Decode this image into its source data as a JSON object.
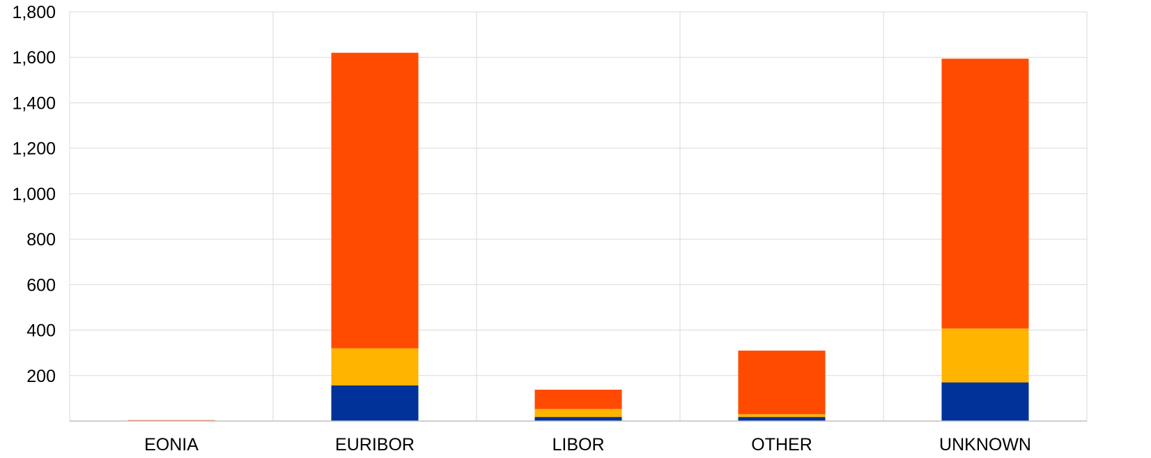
{
  "chart_data": {
    "type": "bar",
    "stacked": true,
    "categories": [
      "EONIA",
      "EURIBOR",
      "LIBOR",
      "OTHER",
      "UNKNOWN"
    ],
    "series": [
      {
        "color": "#003299",
        "values": [
          0,
          157,
          18,
          18,
          170
        ]
      },
      {
        "color": "#FFB400",
        "values": [
          0,
          163,
          35,
          12,
          237
        ]
      },
      {
        "color": "#FF4B00",
        "values": [
          4,
          1300,
          85,
          280,
          1187
        ]
      }
    ],
    "y_ticks": [
      "200",
      "400",
      "600",
      "800",
      "1,000",
      "1,200",
      "1,400",
      "1,600",
      "1,800"
    ],
    "ylim": [
      0,
      1800
    ],
    "grid": true,
    "legend": "none",
    "title": "",
    "xlabel": "",
    "ylabel": ""
  }
}
